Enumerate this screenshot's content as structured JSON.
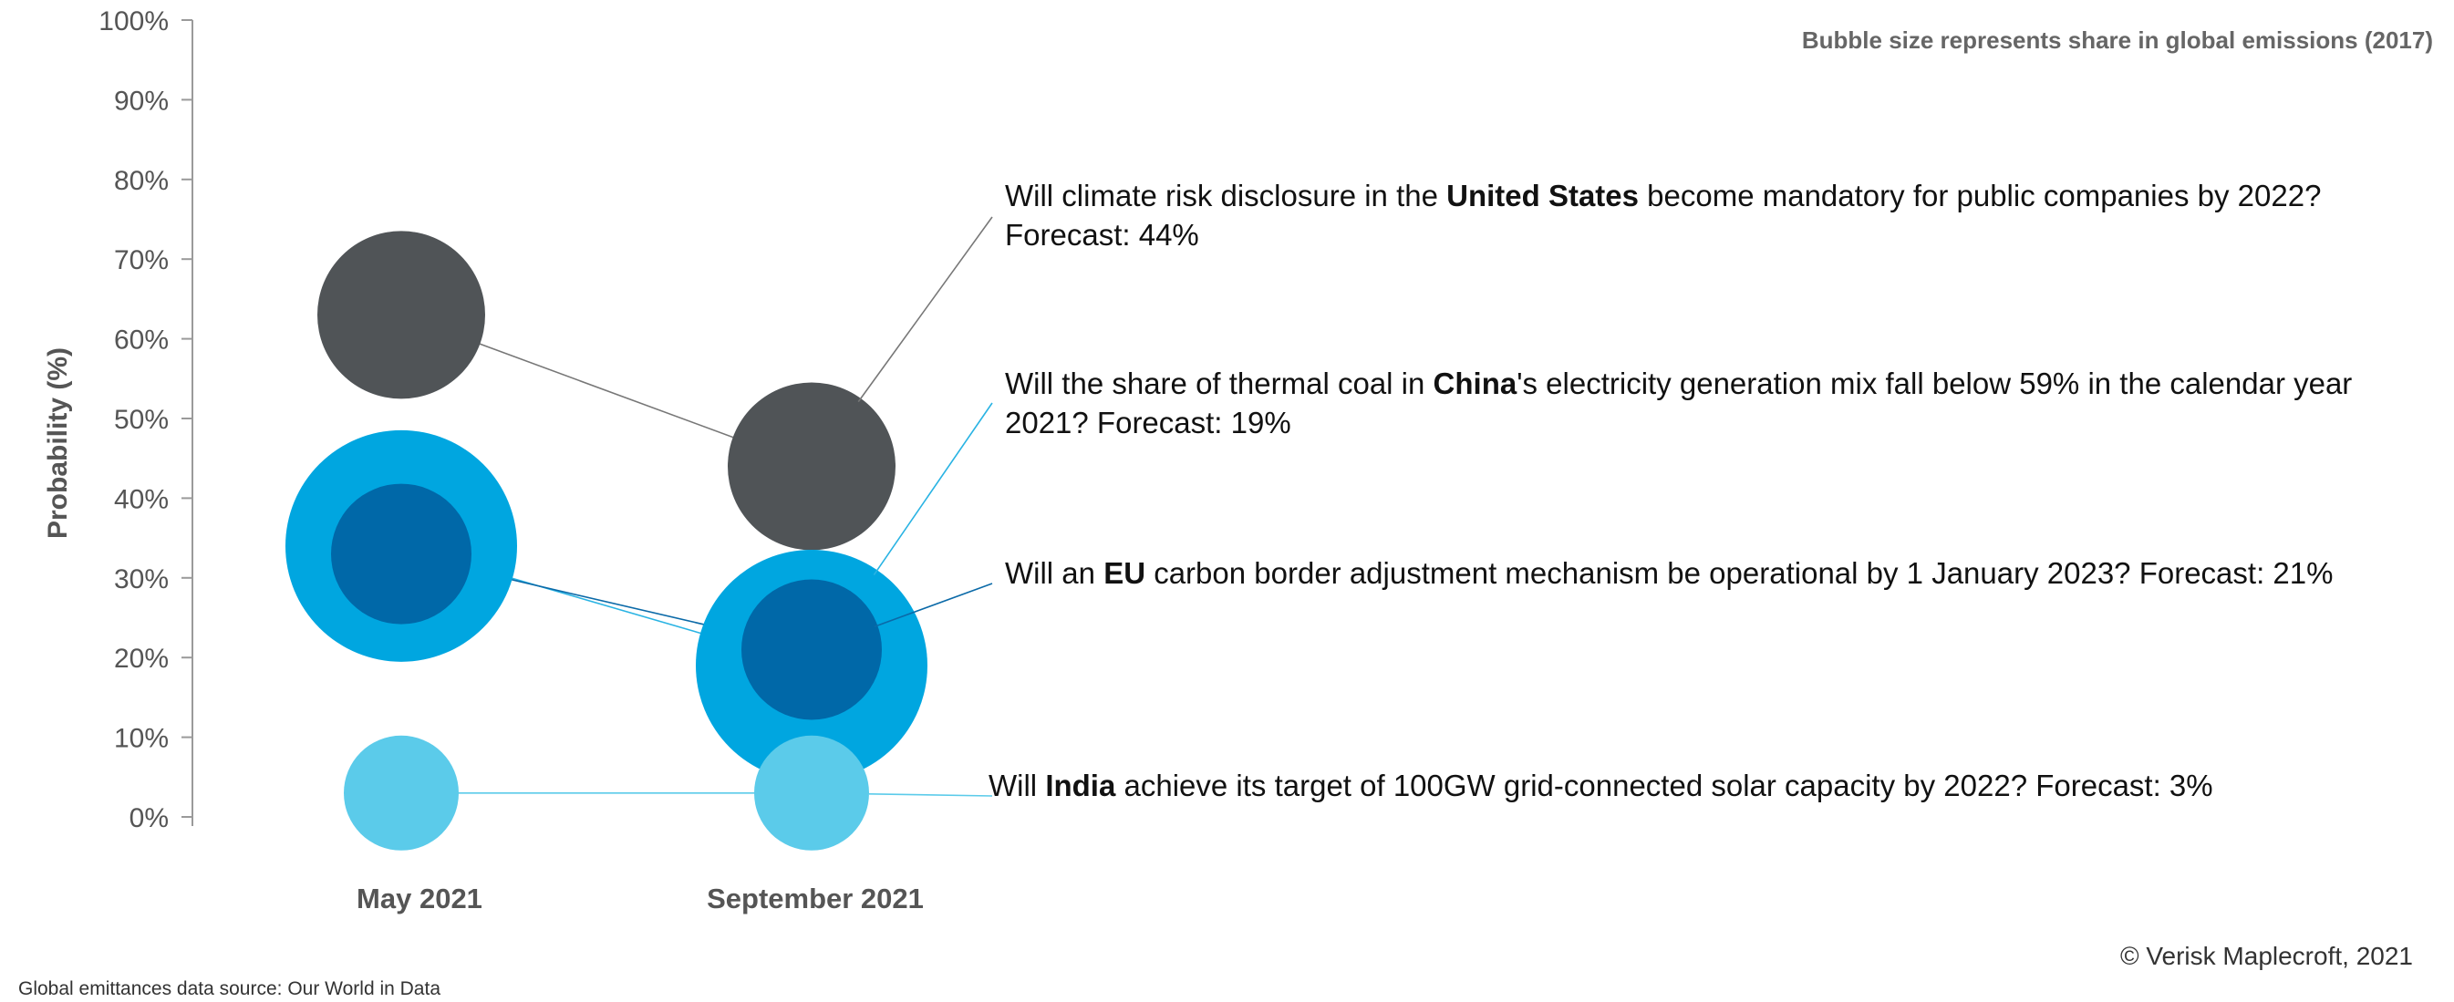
{
  "chart_data": {
    "type": "scatter",
    "ylabel": "Probability (%)",
    "ylim": [
      0,
      100
    ],
    "y_ticks": [
      "0%",
      "10%",
      "20%",
      "30%",
      "40%",
      "50%",
      "60%",
      "70%",
      "80%",
      "90%",
      "100%"
    ],
    "y_tick_values": [
      0,
      10,
      20,
      30,
      40,
      50,
      60,
      70,
      80,
      90,
      100
    ],
    "categories": [
      "May 2021",
      "September 2021"
    ],
    "size_note": "Bubble size represents share in global emissions (2017)",
    "series": [
      {
        "country": "United States",
        "values": [
          63,
          44
        ],
        "color": "#505457",
        "annotation": {
          "line1": [
            "Will climate risk disclosure in the ",
            "United States",
            " become mandatory for public companies by 2022?"
          ],
          "line2": [
            "Forecast: 44%"
          ]
        }
      },
      {
        "country": "China",
        "values": [
          34,
          19
        ],
        "color": "#00A6E0",
        "annotation": {
          "line1": [
            "Will the share of thermal coal in ",
            "China",
            "'s electricity generation mix fall below 59% in the calendar year"
          ],
          "line2": [
            "2021? Forecast: 19%"
          ]
        }
      },
      {
        "country": "EU",
        "values": [
          33,
          21
        ],
        "color": "#0068A8",
        "annotation": {
          "line1": [
            "Will an ",
            "EU",
            " carbon border adjustment mechanism be operational by 1 January 2023? Forecast: 21%"
          ]
        }
      },
      {
        "country": "India",
        "values": [
          3,
          3
        ],
        "color": "#5BCBEA",
        "annotation": {
          "line1": [
            "Will ",
            "India",
            " achieve its target of 100GW grid-connected solar capacity by 2022? Forecast: 3%"
          ]
        }
      }
    ]
  },
  "footer": {
    "copyright": "© Verisk Maplecroft, 2021",
    "source": "Global emittances data source: Our World in Data"
  }
}
